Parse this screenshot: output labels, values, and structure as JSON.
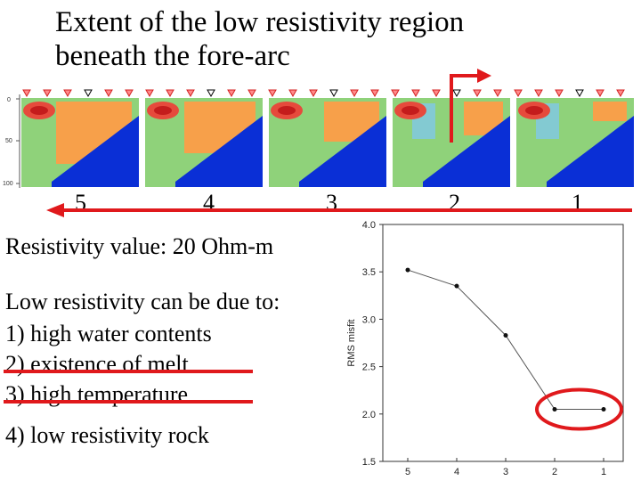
{
  "title": {
    "line1": "Extent of the low resistivity region",
    "line2": "beneath the fore-arc"
  },
  "panels": {
    "depth_ticks": [
      "0",
      "50",
      "100"
    ],
    "labels": [
      "5",
      "4",
      "3",
      "2",
      "1"
    ]
  },
  "resistivity_text": "Resistivity value: 20 Ohm-m",
  "causes": {
    "heading": "Low resistivity can be due to:",
    "items": [
      {
        "text": "1) high water contents",
        "struck": false
      },
      {
        "text": "2) existence of melt",
        "struck": true
      },
      {
        "text": "3) high temperature",
        "struck": true
      },
      {
        "text": "4) low resistivity rock",
        "struck": false
      }
    ]
  },
  "colors": {
    "annotation_red": "#e0191c",
    "deep_blue": "#0a2fd6",
    "orange": "#f7a04a",
    "green": "#8fd27a"
  },
  "chart_data": {
    "type": "line",
    "x": [
      "5",
      "4",
      "3",
      "2",
      "1"
    ],
    "values": [
      3.52,
      3.35,
      2.83,
      2.05,
      2.05
    ],
    "ylabel": "RMS misfit",
    "xlabel": "",
    "ylim": [
      1.5,
      4.0
    ],
    "yticks": [
      "1.5",
      "2.0",
      "2.5",
      "3.0",
      "3.5",
      "4.0"
    ],
    "grid": false,
    "highlight_circle": [
      "2",
      "1"
    ]
  }
}
